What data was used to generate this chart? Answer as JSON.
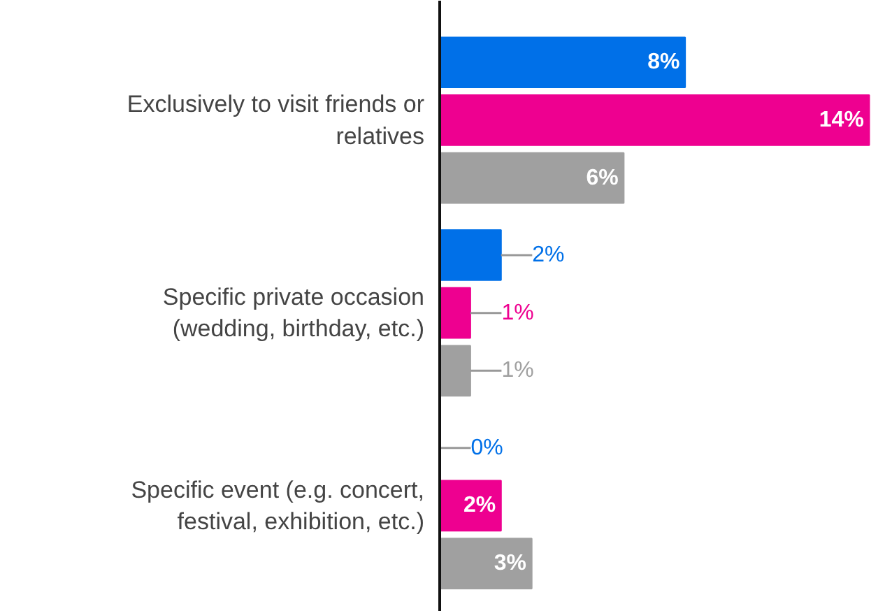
{
  "chart_data": {
    "type": "bar",
    "orientation": "horizontal",
    "categories": [
      "Exclusively to visit friends or relatives",
      "Specific private occasion (wedding, birthday, etc.)",
      "Specific event (e.g. concert, festival, exhibition, etc.)"
    ],
    "series": [
      {
        "color": "#0070e8",
        "values": [
          8,
          2,
          0
        ],
        "value_labels": [
          "8%",
          "2%",
          "0%"
        ]
      },
      {
        "color": "#ee0090",
        "values": [
          14,
          1,
          2
        ],
        "value_labels": [
          "14%",
          "1%",
          "2%"
        ]
      },
      {
        "color": "#a0a0a0",
        "values": [
          6,
          1,
          3
        ],
        "value_labels": [
          "6%",
          "1%",
          "3%"
        ]
      }
    ],
    "tick_labels": "y",
    "grid": false
  }
}
